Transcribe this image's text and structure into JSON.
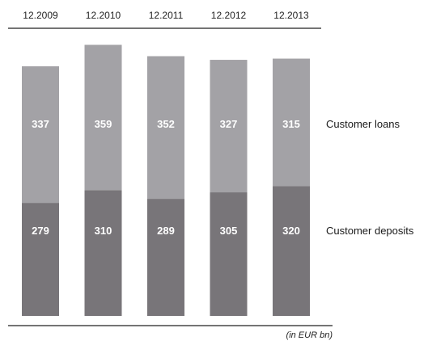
{
  "chart_data": {
    "type": "bar",
    "stacked": true,
    "categories": [
      "12.2009",
      "12.2010",
      "12.2011",
      "12.2012",
      "12.2013"
    ],
    "series": [
      {
        "name": "Customer deposits",
        "values": [
          279,
          310,
          289,
          305,
          320
        ],
        "color": "#787579"
      },
      {
        "name": "Customer loans",
        "values": [
          337,
          359,
          352,
          327,
          315
        ],
        "color": "#a3a2a6"
      }
    ],
    "unit_note": "(in EUR bn)",
    "legend_position": "right",
    "grid": false
  }
}
